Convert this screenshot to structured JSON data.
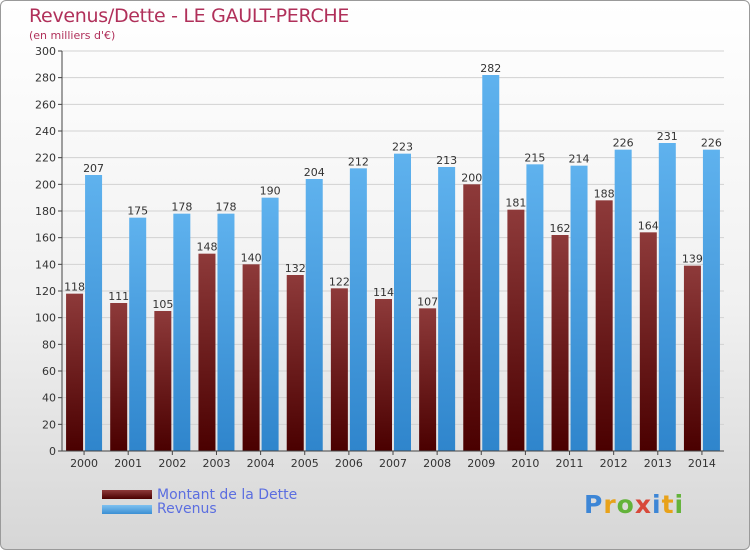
{
  "header": {
    "title": "Revenus/Dette - LE GAULT-PERCHE",
    "subtitle": "(en milliers d'€)"
  },
  "chart_data": {
    "type": "bar",
    "title": "Revenus/Dette - LE GAULT-PERCHE",
    "ylabel": "(en milliers d'€)",
    "xlabel": "",
    "ylim": [
      0,
      300
    ],
    "ytick_step": 20,
    "grid": true,
    "legend_position": "bottom-left",
    "categories": [
      "2000",
      "2001",
      "2002",
      "2003",
      "2004",
      "2005",
      "2006",
      "2007",
      "2008",
      "2009",
      "2010",
      "2011",
      "2012",
      "2013",
      "2014"
    ],
    "series": [
      {
        "name": "Montant de la Dette",
        "color": "#6b1414",
        "values": [
          118,
          111,
          105,
          148,
          140,
          132,
          122,
          114,
          107,
          200,
          181,
          162,
          188,
          164,
          139
        ]
      },
      {
        "name": "Revenus",
        "color": "#4aa3e6",
        "values": [
          207,
          175,
          178,
          178,
          190,
          204,
          212,
          223,
          213,
          282,
          215,
          214,
          226,
          231,
          226
        ]
      }
    ]
  },
  "legend": {
    "items": [
      {
        "label": "Montant de la Dette",
        "color": "#6b1414"
      },
      {
        "label": "Revenus",
        "color": "#4aa3e6"
      }
    ]
  },
  "logo": {
    "letters": [
      "P",
      "r",
      "o",
      "x",
      "i",
      "t",
      "i"
    ]
  }
}
